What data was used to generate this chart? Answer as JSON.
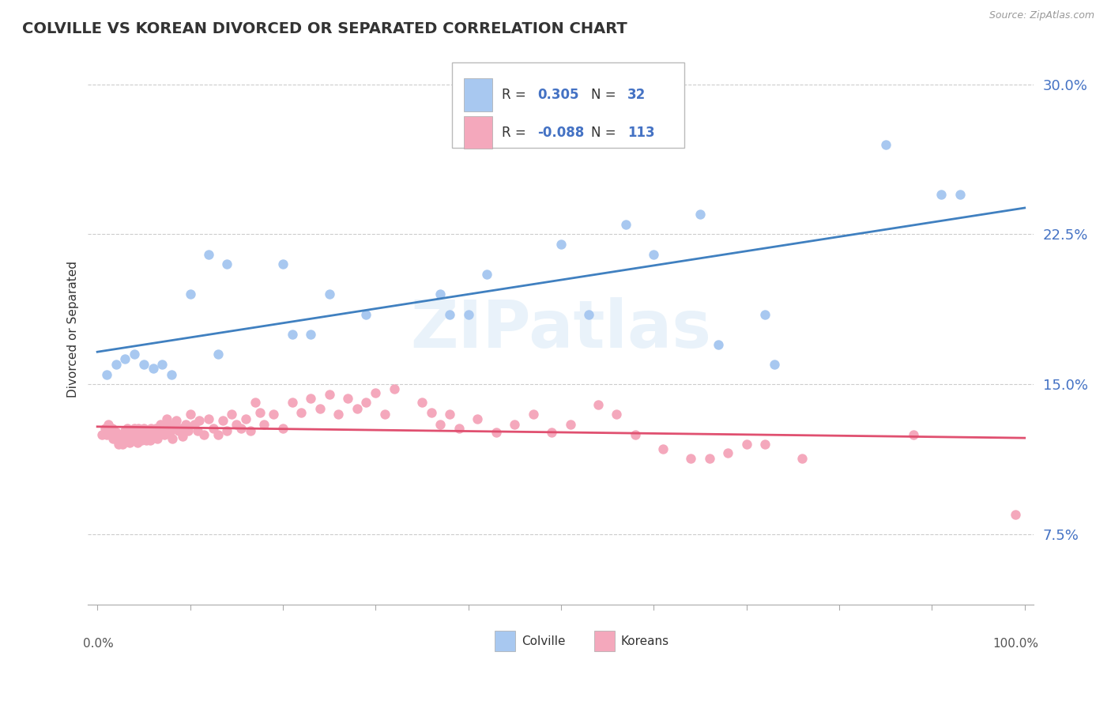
{
  "title": "COLVILLE VS KOREAN DIVORCED OR SEPARATED CORRELATION CHART",
  "source": "Source: ZipAtlas.com",
  "ylabel": "Divorced or Separated",
  "yticks": [
    0.075,
    0.15,
    0.225,
    0.3
  ],
  "ytick_labels": [
    "7.5%",
    "15.0%",
    "22.5%",
    "30.0%"
  ],
  "ylim": [
    0.04,
    0.315
  ],
  "xlim": [
    -0.01,
    1.01
  ],
  "colville_r": 0.305,
  "colville_n": 32,
  "korean_r": -0.088,
  "korean_n": 113,
  "colville_color": "#A8C8F0",
  "korean_color": "#F4A8BC",
  "colville_line_color": "#4080C0",
  "korean_line_color": "#E05070",
  "watermark": "ZIPatlas",
  "colville_x": [
    0.01,
    0.02,
    0.03,
    0.04,
    0.05,
    0.06,
    0.07,
    0.08,
    0.1,
    0.12,
    0.13,
    0.14,
    0.2,
    0.21,
    0.23,
    0.25,
    0.29,
    0.37,
    0.38,
    0.4,
    0.42,
    0.5,
    0.53,
    0.57,
    0.6,
    0.65,
    0.67,
    0.72,
    0.73,
    0.85,
    0.91,
    0.93
  ],
  "colville_y": [
    0.155,
    0.16,
    0.163,
    0.165,
    0.16,
    0.158,
    0.16,
    0.155,
    0.195,
    0.215,
    0.165,
    0.21,
    0.21,
    0.175,
    0.175,
    0.195,
    0.185,
    0.195,
    0.185,
    0.185,
    0.205,
    0.22,
    0.185,
    0.23,
    0.215,
    0.235,
    0.17,
    0.185,
    0.16,
    0.27,
    0.245,
    0.245
  ],
  "korean_x": [
    0.005,
    0.008,
    0.01,
    0.012,
    0.015,
    0.016,
    0.017,
    0.018,
    0.019,
    0.02,
    0.021,
    0.022,
    0.023,
    0.024,
    0.025,
    0.026,
    0.027,
    0.028,
    0.03,
    0.031,
    0.032,
    0.033,
    0.034,
    0.035,
    0.036,
    0.038,
    0.04,
    0.041,
    0.042,
    0.043,
    0.044,
    0.045,
    0.046,
    0.048,
    0.05,
    0.052,
    0.053,
    0.054,
    0.055,
    0.057,
    0.058,
    0.06,
    0.062,
    0.063,
    0.065,
    0.067,
    0.068,
    0.07,
    0.072,
    0.075,
    0.077,
    0.079,
    0.081,
    0.083,
    0.085,
    0.088,
    0.09,
    0.092,
    0.095,
    0.098,
    0.1,
    0.105,
    0.108,
    0.11,
    0.115,
    0.12,
    0.125,
    0.13,
    0.135,
    0.14,
    0.145,
    0.15,
    0.155,
    0.16,
    0.165,
    0.17,
    0.175,
    0.18,
    0.19,
    0.2,
    0.21,
    0.22,
    0.23,
    0.24,
    0.25,
    0.26,
    0.27,
    0.28,
    0.29,
    0.3,
    0.31,
    0.32,
    0.35,
    0.36,
    0.37,
    0.38,
    0.39,
    0.41,
    0.43,
    0.45,
    0.47,
    0.49,
    0.51,
    0.54,
    0.56,
    0.58,
    0.61,
    0.64,
    0.66,
    0.68,
    0.7,
    0.72,
    0.76,
    0.88,
    0.99
  ],
  "korean_y": [
    0.125,
    0.128,
    0.125,
    0.13,
    0.125,
    0.128,
    0.123,
    0.127,
    0.125,
    0.126,
    0.123,
    0.122,
    0.12,
    0.124,
    0.122,
    0.121,
    0.12,
    0.123,
    0.127,
    0.125,
    0.128,
    0.122,
    0.124,
    0.121,
    0.126,
    0.123,
    0.128,
    0.122,
    0.124,
    0.121,
    0.128,
    0.126,
    0.124,
    0.122,
    0.128,
    0.125,
    0.122,
    0.125,
    0.127,
    0.122,
    0.128,
    0.126,
    0.124,
    0.128,
    0.123,
    0.127,
    0.13,
    0.128,
    0.125,
    0.133,
    0.13,
    0.127,
    0.123,
    0.129,
    0.132,
    0.127,
    0.128,
    0.124,
    0.13,
    0.127,
    0.135,
    0.13,
    0.127,
    0.132,
    0.125,
    0.133,
    0.128,
    0.125,
    0.132,
    0.127,
    0.135,
    0.13,
    0.128,
    0.133,
    0.127,
    0.141,
    0.136,
    0.13,
    0.135,
    0.128,
    0.141,
    0.136,
    0.143,
    0.138,
    0.145,
    0.135,
    0.143,
    0.138,
    0.141,
    0.146,
    0.135,
    0.148,
    0.141,
    0.136,
    0.13,
    0.135,
    0.128,
    0.133,
    0.126,
    0.13,
    0.135,
    0.126,
    0.13,
    0.14,
    0.135,
    0.125,
    0.118,
    0.113,
    0.113,
    0.116,
    0.12,
    0.12,
    0.113,
    0.125,
    0.085
  ]
}
